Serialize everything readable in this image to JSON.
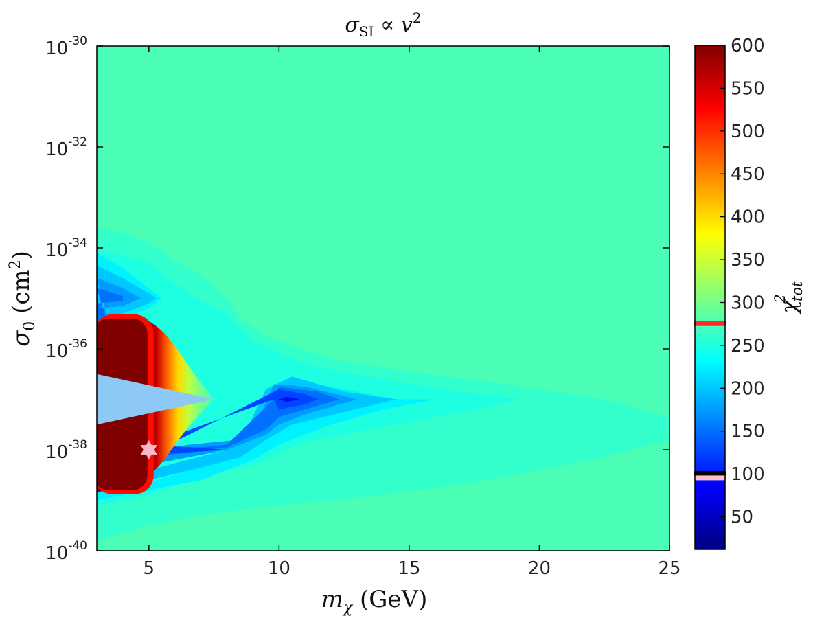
{
  "chart_data": {
    "type": "heatmap",
    "title": {
      "sym": "σ",
      "sub": "SI",
      "rel": " ∝ ",
      "var": "v",
      "pow": "2"
    },
    "xlabel": {
      "sym": "m",
      "sub": "χ",
      "unit": " (GeV)"
    },
    "ylabel": {
      "sym": "σ",
      "sub": "0",
      "unit_open": " (cm",
      "unit_pow": "2",
      "unit_close": ")"
    },
    "x_ticks": [
      "5",
      "10",
      "15",
      "20",
      "25"
    ],
    "x_tick_values": [
      5,
      10,
      15,
      20,
      25
    ],
    "xlim": [
      3,
      25
    ],
    "y_scale": "log",
    "ylim_exponents": [
      -40,
      -30
    ],
    "y_tick_base": "10",
    "y_tick_exponents": [
      "-30",
      "-32",
      "-34",
      "-36",
      "-38",
      "-40"
    ],
    "colorbar": {
      "label": {
        "sym": "χ",
        "sub": "tot",
        "pow": "2"
      },
      "range": [
        12,
        600
      ],
      "ticks": [
        "50",
        "100",
        "150",
        "200",
        "250",
        "300",
        "350",
        "400",
        "450",
        "500",
        "550",
        "600"
      ],
      "tick_values": [
        50,
        100,
        150,
        200,
        250,
        300,
        350,
        400,
        450,
        500,
        550,
        600
      ],
      "markers": [
        {
          "value": 275,
          "color": "#ff2a2a"
        },
        {
          "value": 100,
          "color": "#000000"
        },
        {
          "value": 95,
          "color": "#ffc0cb"
        }
      ]
    },
    "background_value": 275,
    "contour_levels": [
      {
        "value": 262,
        "points": [
          [
            3,
            -33.6
          ],
          [
            4,
            -33.7
          ],
          [
            5,
            -33.9
          ],
          [
            6,
            -34.25
          ],
          [
            7,
            -34.55
          ],
          [
            8,
            -35.0
          ],
          [
            8.5,
            -35.4
          ],
          [
            9.5,
            -35.75
          ],
          [
            12,
            -36.2
          ],
          [
            15,
            -36.45
          ],
          [
            18,
            -36.65
          ],
          [
            20,
            -36.8
          ],
          [
            22.5,
            -37.0
          ],
          [
            25,
            -37.35
          ],
          [
            25,
            -37.8
          ],
          [
            22,
            -38.2
          ],
          [
            18,
            -38.6
          ],
          [
            14,
            -38.9
          ],
          [
            10,
            -39.1
          ],
          [
            7,
            -39.3
          ],
          [
            5,
            -39.5
          ],
          [
            3,
            -39.8
          ]
        ]
      },
      {
        "value": 250,
        "points": [
          [
            3,
            -34.0
          ],
          [
            4,
            -34.15
          ],
          [
            5,
            -34.3
          ],
          [
            6,
            -34.7
          ],
          [
            7,
            -35.05
          ],
          [
            8,
            -35.3
          ],
          [
            9,
            -35.85
          ],
          [
            11,
            -36.3
          ],
          [
            14,
            -36.6
          ],
          [
            17,
            -36.85
          ],
          [
            19.3,
            -37.0
          ],
          [
            17,
            -37.25
          ],
          [
            14,
            -37.55
          ],
          [
            11,
            -37.85
          ],
          [
            9,
            -38.3
          ],
          [
            7,
            -38.55
          ],
          [
            5,
            -38.9
          ],
          [
            4,
            -39.0
          ],
          [
            3,
            -39.1
          ]
        ]
      },
      {
        "value": 225,
        "points": [
          [
            3,
            -34.1
          ],
          [
            4,
            -34.4
          ],
          [
            5,
            -34.8
          ],
          [
            5.5,
            -35.0
          ],
          [
            5,
            -35.2
          ],
          [
            4,
            -35.4
          ],
          [
            3,
            -35.5
          ],
          [
            3,
            -38.8
          ],
          [
            5,
            -38.65
          ],
          [
            6.5,
            -38.4
          ],
          [
            8,
            -38.2
          ],
          [
            8.7,
            -37.9
          ],
          [
            9.4,
            -37.1
          ],
          [
            10.5,
            -36.6
          ],
          [
            12.5,
            -36.8
          ],
          [
            14.5,
            -37.0
          ],
          [
            16,
            -37.0
          ],
          [
            14,
            -37.2
          ],
          [
            12,
            -37.5
          ],
          [
            10,
            -37.9
          ],
          [
            9,
            -38.2
          ],
          [
            8,
            -38.4
          ],
          [
            7,
            -38.6
          ],
          [
            5,
            -38.8
          ],
          [
            3,
            -39.0
          ]
        ]
      },
      {
        "value": 200,
        "points": [
          [
            3,
            -34.35
          ],
          [
            4,
            -34.6
          ],
          [
            5,
            -34.9
          ],
          [
            5.3,
            -35.0
          ],
          [
            5,
            -35.1
          ],
          [
            4,
            -35.3
          ],
          [
            3,
            -35.4
          ],
          [
            3,
            -38.6
          ],
          [
            4,
            -38.55
          ],
          [
            5,
            -38.4
          ],
          [
            6.5,
            -38.2
          ],
          [
            8,
            -38.0
          ],
          [
            8.8,
            -37.55
          ],
          [
            9.5,
            -36.8
          ],
          [
            10.5,
            -36.55
          ],
          [
            12.5,
            -36.85
          ],
          [
            14.5,
            -37.0
          ],
          [
            12.5,
            -37.25
          ],
          [
            10.5,
            -37.5
          ],
          [
            9.5,
            -37.8
          ],
          [
            8.5,
            -38.15
          ],
          [
            7,
            -38.35
          ],
          [
            5,
            -38.6
          ],
          [
            3,
            -38.7
          ]
        ]
      },
      {
        "value": 175,
        "points": [
          [
            3,
            -34.6
          ],
          [
            4,
            -34.8
          ],
          [
            4.7,
            -35.0
          ],
          [
            4,
            -35.15
          ],
          [
            3,
            -35.2
          ],
          [
            3,
            -38.3
          ],
          [
            5,
            -38.05
          ],
          [
            6.5,
            -37.9
          ],
          [
            7.5,
            -37.85
          ],
          [
            8.5,
            -37.8
          ],
          [
            9.3,
            -37.3
          ],
          [
            9.8,
            -36.7
          ],
          [
            11,
            -36.75
          ],
          [
            13,
            -37.0
          ],
          [
            11,
            -37.3
          ],
          [
            10,
            -37.5
          ],
          [
            9.5,
            -37.7
          ],
          [
            8,
            -38.0
          ],
          [
            6.5,
            -38.15
          ],
          [
            5,
            -38.3
          ]
        ]
      },
      {
        "value": 150,
        "points": [
          [
            3,
            -34.8
          ],
          [
            4,
            -34.95
          ],
          [
            4,
            -35.05
          ],
          [
            3,
            -35.1
          ],
          [
            3,
            -38.15
          ],
          [
            5.5,
            -37.95
          ],
          [
            7,
            -37.95
          ],
          [
            8,
            -37.9
          ],
          [
            9.8,
            -37.0
          ],
          [
            10,
            -36.75
          ],
          [
            11.5,
            -36.85
          ],
          [
            12.3,
            -37.0
          ],
          [
            11,
            -37.2
          ],
          [
            10,
            -37.35
          ],
          [
            9.5,
            -37.6
          ],
          [
            8,
            -37.95
          ],
          [
            6.5,
            -38.05
          ],
          [
            5,
            -38.15
          ]
        ]
      },
      {
        "value": 125,
        "points": [
          [
            5,
            -37.9
          ],
          [
            6.5,
            -37.95
          ],
          [
            8,
            -38.0
          ],
          [
            6.5,
            -38.05
          ],
          [
            5,
            -38.1
          ],
          [
            10,
            -36.8
          ],
          [
            11,
            -36.9
          ],
          [
            11.5,
            -37.0
          ],
          [
            11,
            -37.1
          ],
          [
            10,
            -37.2
          ],
          [
            9.8,
            -37.0
          ]
        ]
      },
      {
        "value": 90,
        "points": [
          [
            10.3,
            -36.95
          ],
          [
            10.8,
            -37.0
          ],
          [
            10.3,
            -37.05
          ],
          [
            10,
            -37.0
          ]
        ]
      }
    ],
    "hot_region": {
      "value": 600,
      "x_range": [
        3,
        5
      ],
      "y_range": [
        -38.8,
        -35.4
      ]
    },
    "gradient_region": {
      "from_value": 600,
      "to_value": 275,
      "x_range": [
        5,
        7.5
      ]
    },
    "wedge": {
      "color": "#8ec8f5",
      "apex": [
        7.5,
        -37.0
      ],
      "base_x": 3,
      "base_y": [
        -36.5,
        -37.5
      ]
    },
    "best_fit": {
      "x": 5,
      "y": -38,
      "color": "#ffb6c8",
      "marker": "hexagram"
    },
    "colors": {
      "colormap": "jet",
      "axis": "#000000",
      "background": "#ffffff"
    }
  }
}
